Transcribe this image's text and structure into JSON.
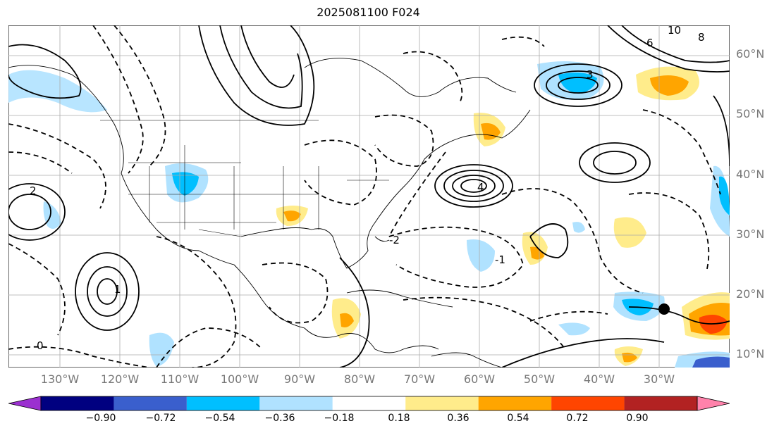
{
  "title": "2025081100 F024",
  "lat_labels": [
    "60°N",
    "50°N",
    "40°N",
    "30°N",
    "20°N",
    "10°N"
  ],
  "lon_labels": [
    "130°W",
    "120°W",
    "110°W",
    "100°W",
    "90°W",
    "80°W",
    "70°W",
    "60°W",
    "50°W",
    "40°W",
    "30°W"
  ],
  "colorbar": {
    "ticks": [
      "−0.90",
      "−0.72",
      "−0.54",
      "−0.36",
      "−0.18",
      "0.18",
      "0.36",
      "0.54",
      "0.72",
      "0.90"
    ],
    "colors": [
      "#9b30d0",
      "#000080",
      "#3a5fcd",
      "#00bfff",
      "#b0e2ff",
      "#ffffff",
      "#ffec8b",
      "#ffa500",
      "#ff4500",
      "#b22222",
      "#ff82ab"
    ]
  },
  "contour_labels": [
    "0",
    "2",
    "1",
    "-2",
    "-1",
    "3",
    "4",
    "6",
    "8",
    "10"
  ],
  "marker": {
    "lon": -30,
    "lat": 18
  },
  "colors": {
    "land_line": "#000000",
    "grid": "#aaaaaa",
    "tick_text": "#777777"
  }
}
